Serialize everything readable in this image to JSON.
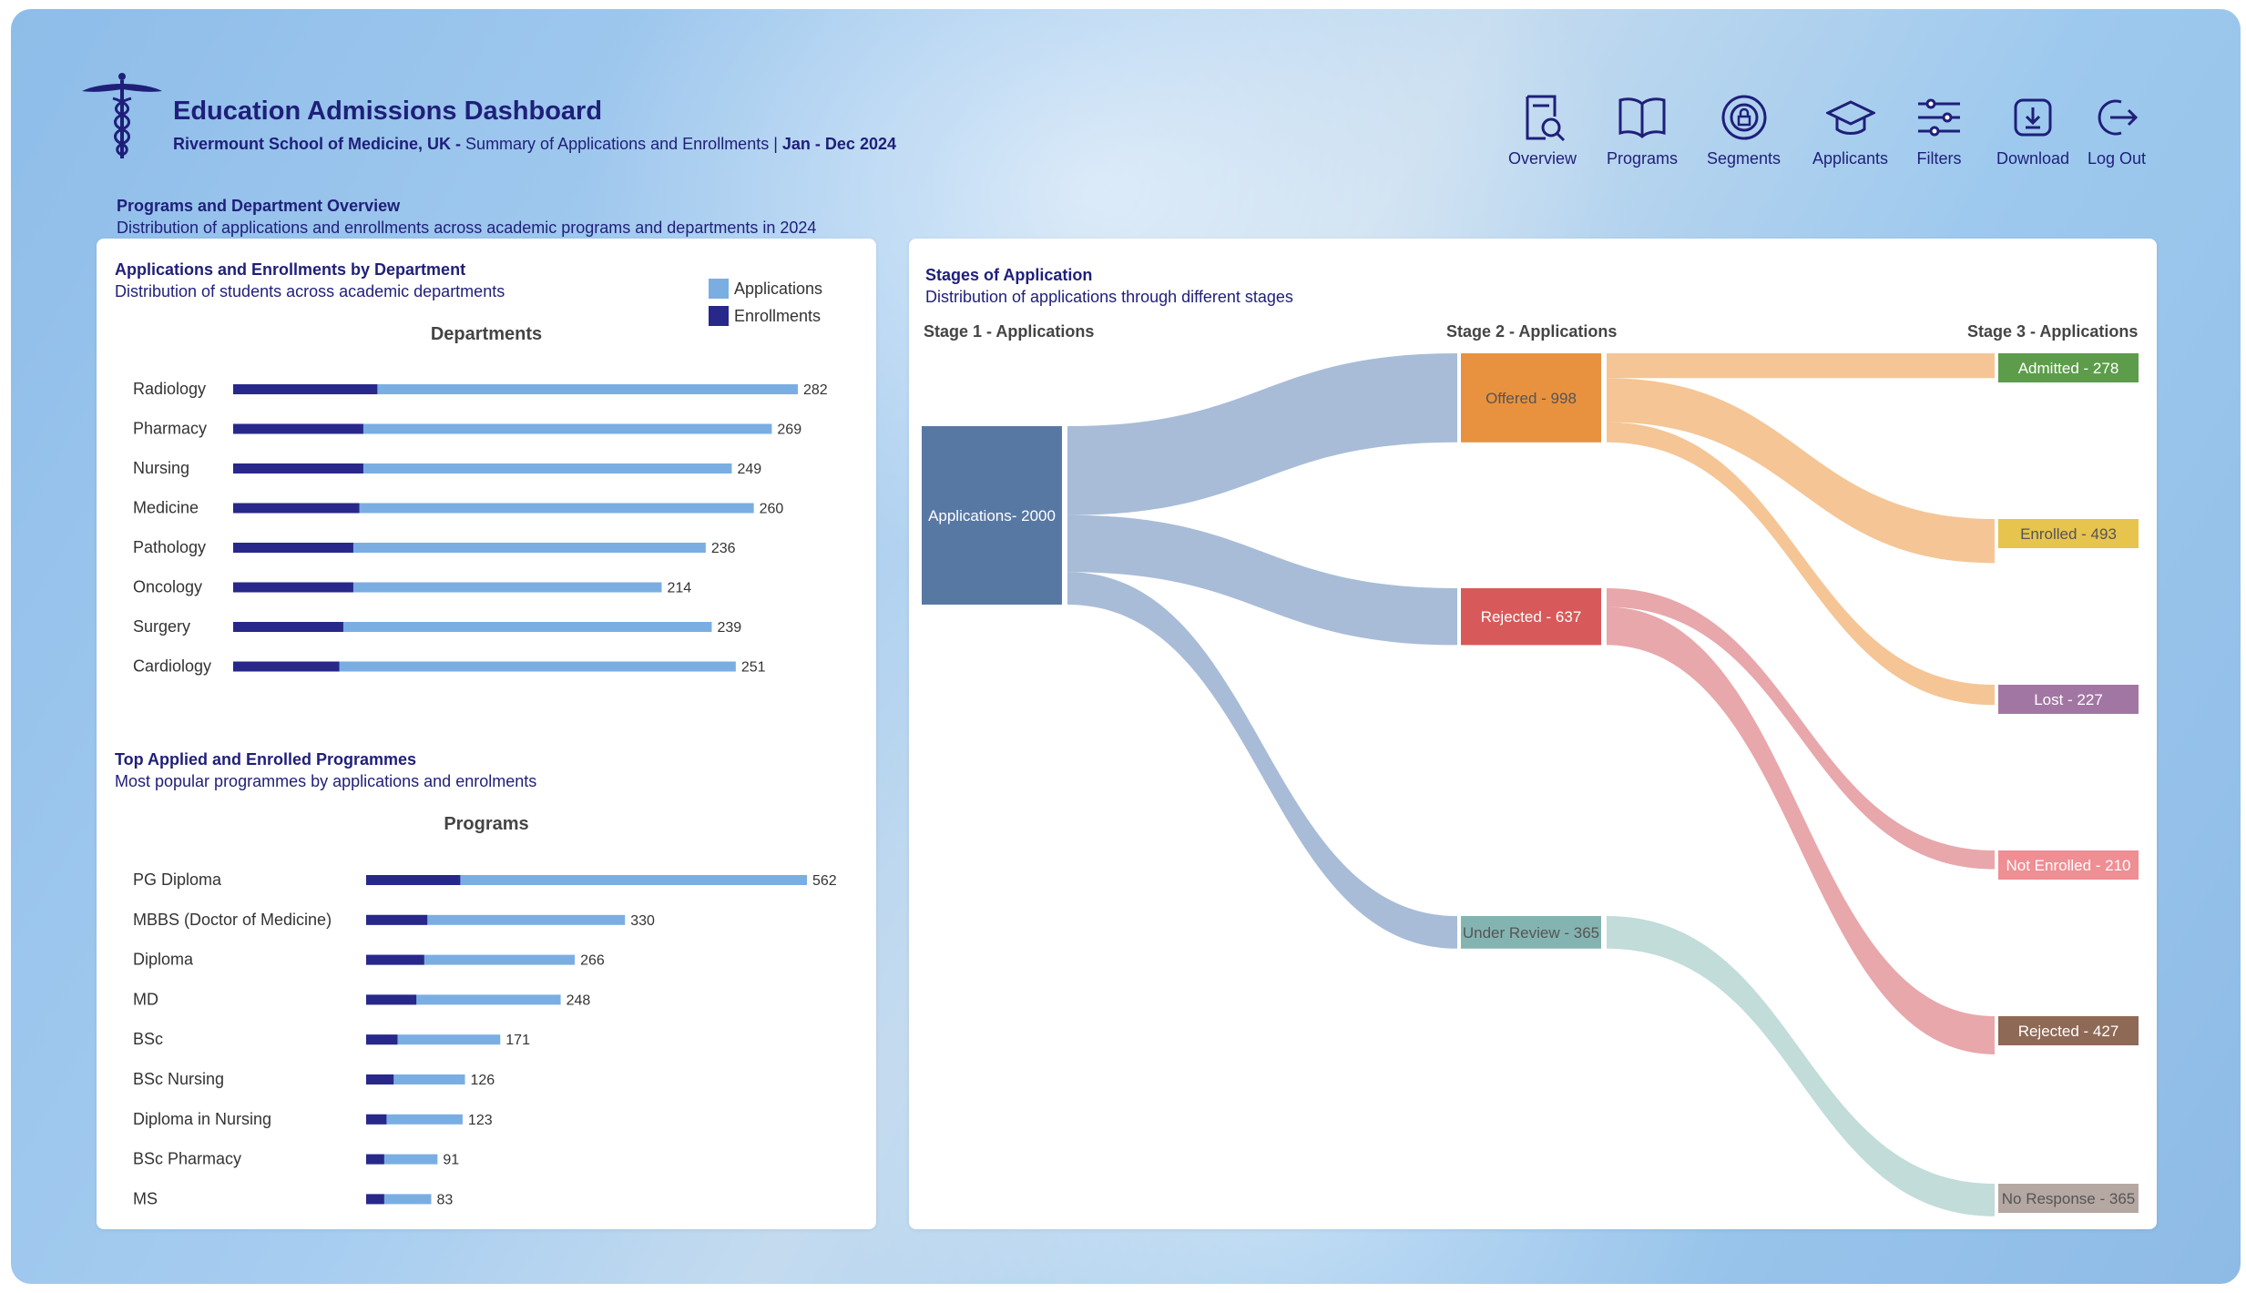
{
  "header": {
    "title": "Education Admissions Dashboard",
    "org": "Rivermount School of Medicine, UK -",
    "summary": "Summary of Applications and Enrollments |",
    "period": "Jan - Dec 2024"
  },
  "nav": [
    {
      "label": "Overview",
      "icon": "document-search-icon"
    },
    {
      "label": "Programs",
      "icon": "book-icon"
    },
    {
      "label": "Segments",
      "icon": "segments-icon"
    },
    {
      "label": "Applicants",
      "icon": "graduation-cap-icon"
    },
    {
      "label": "Filters",
      "icon": "sliders-icon"
    },
    {
      "label": "Download",
      "icon": "download-icon"
    },
    {
      "label": "Log Out",
      "icon": "logout-icon"
    }
  ],
  "section": {
    "title": "Programs and Department Overview",
    "subtitle": "Distribution of applications and enrollments across academic programs and departments in 2024"
  },
  "colors": {
    "applications": "#7aaee3",
    "enrollments": "#27288a",
    "title": "#1f1f7a"
  },
  "legend": {
    "applications": "Applications",
    "enrollments": "Enrollments"
  },
  "dept_card": {
    "title": "Applications and Enrollments by Department",
    "subtitle": "Distribution of students across academic departments",
    "heading": "Departments"
  },
  "prog_card": {
    "title": "Top Applied and Enrolled Programmes",
    "subtitle": "Most popular programmes by applications and enrolments",
    "heading": "Programs"
  },
  "sankey_card": {
    "title": "Stages of Application",
    "subtitle": "Distribution of applications through different stages",
    "stage1": "Stage 1 - Applications",
    "stage2": "Stage 2 - Applications",
    "stage3": "Stage 3 - Applications"
  },
  "chart_data": [
    {
      "type": "bar",
      "title": "Departments",
      "categories": [
        "Radiology",
        "Pharmacy",
        "Nursing",
        "Medicine",
        "Pathology",
        "Oncology",
        "Surgery",
        "Cardiology"
      ],
      "series": [
        {
          "name": "Applications",
          "values": [
            282,
            269,
            249,
            260,
            236,
            214,
            239,
            251
          ]
        },
        {
          "name": "Enrollments",
          "values": [
            72,
            65,
            65,
            63,
            60,
            60,
            55,
            53
          ]
        }
      ],
      "orientation": "horizontal",
      "xlim": [
        0,
        282
      ]
    },
    {
      "type": "bar",
      "title": "Programs",
      "categories": [
        "PG Diploma",
        "MBBS (Doctor of Medicine)",
        "Diploma",
        "MD",
        "BSc",
        "BSc Nursing",
        "Diploma in Nursing",
        "BSc Pharmacy",
        "MS"
      ],
      "series": [
        {
          "name": "Applications",
          "values": [
            562,
            330,
            266,
            248,
            171,
            126,
            123,
            91,
            83
          ]
        },
        {
          "name": "Enrollments",
          "values": [
            120,
            78,
            74,
            64,
            40,
            35,
            26,
            23,
            23
          ]
        }
      ],
      "orientation": "horizontal",
      "xlim": [
        0,
        562
      ]
    },
    {
      "type": "sankey",
      "nodes": [
        {
          "id": "apps",
          "label": "Applications- 2000",
          "value": 2000,
          "stage": 1,
          "color": "#5878a4"
        },
        {
          "id": "offered",
          "label": "Offered - 998",
          "value": 998,
          "stage": 2,
          "color": "#e8923f"
        },
        {
          "id": "rejected2",
          "label": "Rejected - 637",
          "value": 637,
          "stage": 2,
          "color": "#d8595a"
        },
        {
          "id": "review",
          "label": "Under Review - 365",
          "value": 365,
          "stage": 2,
          "color": "#84b4b1"
        },
        {
          "id": "admitted",
          "label": "Admitted - 278",
          "value": 278,
          "stage": 3,
          "color": "#5c9c4b"
        },
        {
          "id": "enrolled",
          "label": "Enrolled - 493",
          "value": 493,
          "stage": 3,
          "color": "#e6c44d"
        },
        {
          "id": "lost",
          "label": "Lost - 227",
          "value": 227,
          "stage": 3,
          "color": "#a276a3"
        },
        {
          "id": "notenrolled",
          "label": "Not Enrolled - 210",
          "value": 210,
          "stage": 3,
          "color": "#ef8e93"
        },
        {
          "id": "rejected3",
          "label": "Rejected - 427",
          "value": 427,
          "stage": 3,
          "color": "#8e6956"
        },
        {
          "id": "noresponse",
          "label": "No Response - 365",
          "value": 365,
          "stage": 3,
          "color": "#b5a8a2"
        }
      ],
      "links": [
        {
          "source": "apps",
          "target": "offered",
          "value": 998
        },
        {
          "source": "apps",
          "target": "rejected2",
          "value": 637
        },
        {
          "source": "apps",
          "target": "review",
          "value": 365
        },
        {
          "source": "offered",
          "target": "admitted",
          "value": 278
        },
        {
          "source": "offered",
          "target": "enrolled",
          "value": 493
        },
        {
          "source": "offered",
          "target": "lost",
          "value": 227
        },
        {
          "source": "rejected2",
          "target": "notenrolled",
          "value": 210
        },
        {
          "source": "rejected2",
          "target": "rejected3",
          "value": 427
        },
        {
          "source": "review",
          "target": "noresponse",
          "value": 365
        }
      ]
    }
  ]
}
